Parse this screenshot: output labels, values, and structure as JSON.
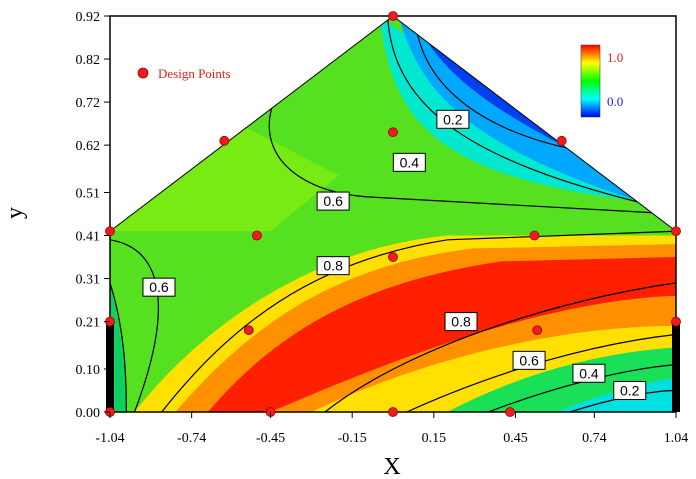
{
  "chart_data": {
    "type": "heatmap",
    "subtype": "filled contour plot",
    "xlabel": "X",
    "ylabel": "y",
    "x_ticks": [
      "-1.04",
      "-0.74",
      "-0.45",
      "-0.15",
      "0.15",
      "0.45",
      "0.74",
      "1.04"
    ],
    "y_ticks": [
      "0.00",
      "0.10",
      "0.21",
      "0.31",
      "0.41",
      "0.51",
      "0.62",
      "0.72",
      "0.82",
      "0.92"
    ],
    "xlim": [
      -1.04,
      1.04
    ],
    "ylim": [
      0.0,
      0.92
    ],
    "domain_shape": "pentagon",
    "domain_vertices": [
      [
        -1.04,
        0.0
      ],
      [
        1.04,
        0.0
      ],
      [
        1.04,
        0.42
      ],
      [
        0.0,
        0.92
      ],
      [
        -1.04,
        0.42
      ]
    ],
    "colorbar": {
      "max_label": "1.0",
      "min_label": "0.0",
      "max_color": "#ff0000",
      "min_color": "#0000ff",
      "colors": [
        "#0000ff",
        "#00ffff",
        "#00ff00",
        "#ffff00",
        "#ff0000"
      ]
    },
    "contour_labels": [
      "0.2",
      "0.4",
      "0.6",
      "0.8",
      "0.6",
      "0.8",
      "0.6",
      "0.4",
      "0.2"
    ],
    "design_points_label": "Design Points",
    "design_points": [
      {
        "x": 0.0,
        "y": 0.92
      },
      {
        "x": -0.62,
        "y": 0.63
      },
      {
        "x": 0.0,
        "y": 0.65
      },
      {
        "x": 0.62,
        "y": 0.63
      },
      {
        "x": -1.04,
        "y": 0.42
      },
      {
        "x": -0.5,
        "y": 0.41
      },
      {
        "x": 0.52,
        "y": 0.41
      },
      {
        "x": 1.04,
        "y": 0.42
      },
      {
        "x": 0.0,
        "y": 0.36
      },
      {
        "x": -1.04,
        "y": 0.21
      },
      {
        "x": -0.53,
        "y": 0.19
      },
      {
        "x": 0.53,
        "y": 0.19
      },
      {
        "x": 1.04,
        "y": 0.21
      },
      {
        "x": -1.04,
        "y": 0.0
      },
      {
        "x": -0.45,
        "y": 0.0
      },
      {
        "x": 0.0,
        "y": 0.0
      },
      {
        "x": 0.43,
        "y": 0.0
      }
    ],
    "edge_bars": [
      {
        "x": -1.04,
        "y_from": 0.0,
        "y_to": 0.21
      },
      {
        "x": 1.04,
        "y_from": 0.0,
        "y_to": 0.21
      }
    ],
    "colors": {
      "design_point": "#ee1c1c",
      "contour_line": "#000000",
      "legend_text": "#ee1c1c"
    }
  }
}
